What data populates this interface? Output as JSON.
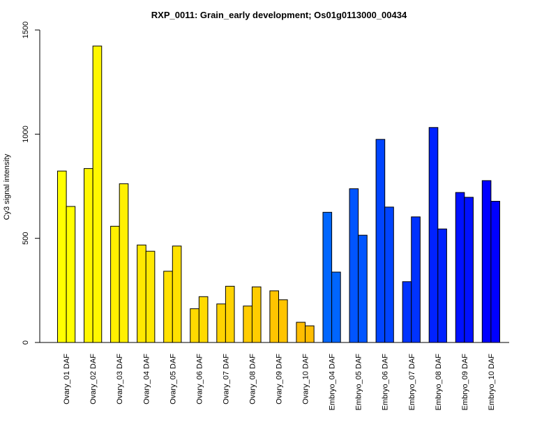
{
  "chart_data": {
    "type": "bar",
    "title": "RXP_0011: Grain_early development; Os01g0113000_00434",
    "xlabel": "",
    "ylabel": "Cy3 signal intensity",
    "ylim": [
      0,
      1500
    ],
    "yticks": [
      "0",
      "500",
      "1000",
      "1500"
    ],
    "grid": false,
    "legend": "none",
    "categories": [
      "Ovary_01 DAF",
      "Ovary_02 DAF",
      "Ovary_03 DAF",
      "Ovary_04 DAF",
      "Ovary_05 DAF",
      "Ovary_06 DAF",
      "Ovary_07 DAF",
      "Ovary_08 DAF",
      "Ovary_09 DAF",
      "Ovary_10 DAF",
      "Embryo_04 DAF",
      "Embryo_05 DAF",
      "Embryo_06 DAF",
      "Embryo_07 DAF",
      "Embryo_08 DAF",
      "Embryo_09 DAF",
      "Embryo_10 DAF"
    ],
    "series": [
      {
        "values": [
          823,
          835,
          558,
          468,
          342,
          162,
          185,
          175,
          248,
          97,
          625,
          738,
          975,
          292,
          1032,
          720,
          777
        ]
      },
      {
        "values": [
          653,
          1423,
          762,
          438,
          463,
          220,
          270,
          267,
          205,
          80,
          338,
          515,
          650,
          603,
          545,
          697,
          678
        ]
      }
    ],
    "colors": [
      "#FFFF00",
      "#FFF700",
      "#FFF000",
      "#FFE900",
      "#FFE100",
      "#FFDA00",
      "#FFD300",
      "#FFCC00",
      "#FFC400",
      "#FFBD00",
      "#0066FF",
      "#0055FF",
      "#0044FF",
      "#0033FF",
      "#0022FF",
      "#0011FF",
      "#0000FF"
    ]
  }
}
